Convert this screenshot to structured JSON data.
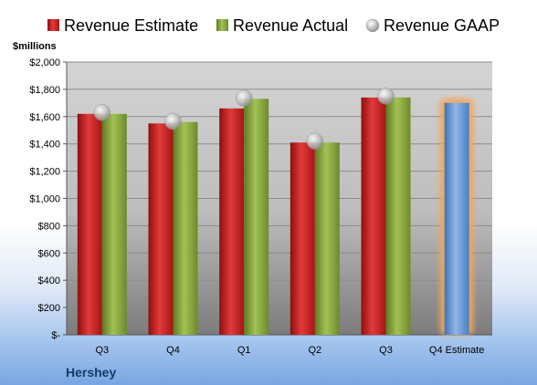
{
  "chart_data": {
    "type": "bar",
    "company": "Hershey",
    "unit_label": "$millions",
    "categories": [
      "Q3",
      "Q4",
      "Q1",
      "Q2",
      "Q3",
      "Q4 Estimate"
    ],
    "series": [
      {
        "name": "Revenue Estimate",
        "kind": "bar",
        "color": "#cc1f1f",
        "values": [
          1620,
          1550,
          1660,
          1410,
          1740,
          null
        ]
      },
      {
        "name": "Revenue Actual",
        "kind": "bar",
        "color": "#86a83a",
        "values": [
          1620,
          1560,
          1730,
          1410,
          1740,
          null
        ]
      },
      {
        "name": "Revenue GAAP",
        "kind": "marker",
        "color": "#b8b8b8",
        "values": [
          1630,
          1565,
          1735,
          1420,
          1750,
          null
        ]
      }
    ],
    "estimate_bar": {
      "category": "Q4 Estimate",
      "value": 1700,
      "color": "#6a9bd6",
      "glow": "#f2a65a"
    },
    "ylim": [
      0,
      2000
    ],
    "yticks": [
      0,
      200,
      400,
      600,
      800,
      1000,
      1200,
      1400,
      1600,
      1800,
      2000
    ],
    "ytick_labels": [
      "$-",
      "$200",
      "$400",
      "$600",
      "$800",
      "$1,000",
      "$1,200",
      "$1,400",
      "$1,600",
      "$1,800",
      "$2,000"
    ],
    "grid": true,
    "legend_position": "top"
  }
}
